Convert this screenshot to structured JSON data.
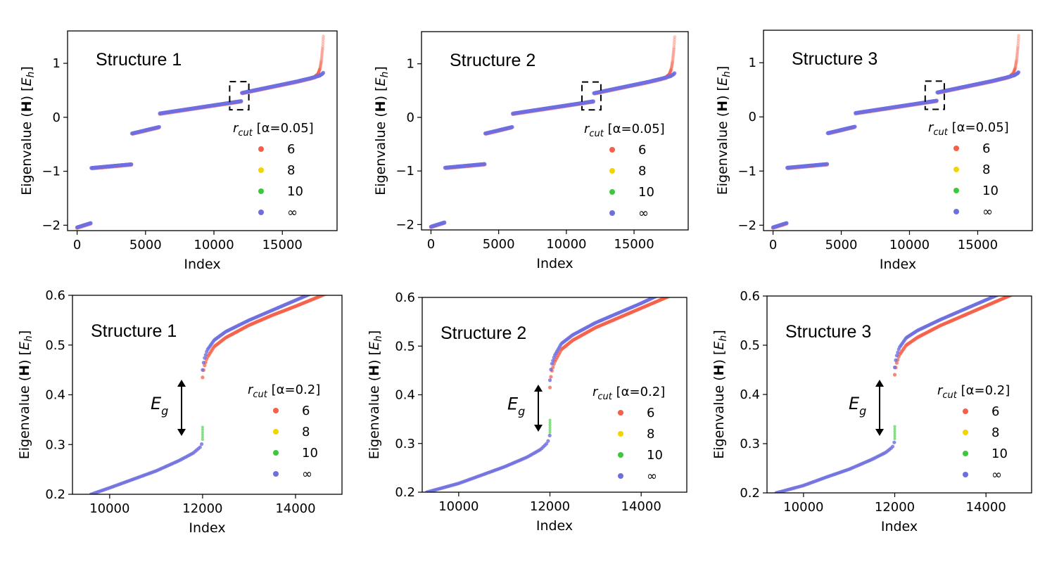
{
  "legend_labels": [
    "6",
    "8",
    "10",
    "∞"
  ],
  "chart_data": [
    {
      "type": "scatter",
      "title": "Structure 1",
      "xlabel": "Index",
      "ylabel": "Eigenvalue (H) [E_h]",
      "xlim": [
        -700,
        19000
      ],
      "ylim": [
        -2.1,
        1.6
      ],
      "xticks": [
        0,
        5000,
        10000,
        15000
      ],
      "yticks": [
        -2,
        -1,
        0,
        1
      ],
      "legend_title": "r_cut [α=0.05]",
      "legend_position": "right",
      "box": true,
      "series": [
        {
          "name": "6",
          "color": "#f4604a"
        },
        {
          "name": "8",
          "color": "#f2d400"
        },
        {
          "name": "10",
          "color": "#3cc83c"
        },
        {
          "name": "∞",
          "color": "#6e6ee0"
        }
      ],
      "x": [
        0,
        1000,
        1010,
        4000,
        4010,
        6000,
        6010,
        12000,
        12010,
        16000,
        17000,
        17700,
        17950,
        18000
      ],
      "ref_y": [
        -2.04,
        -1.96,
        -0.94,
        -0.87,
        -0.3,
        -0.18,
        0.07,
        0.3,
        0.45,
        0.66,
        0.72,
        0.77,
        0.81,
        0.83
      ],
      "r6_tail": [
        [
          17400,
          0.76
        ],
        [
          17600,
          0.8
        ],
        [
          17750,
          0.9
        ],
        [
          17850,
          1.05
        ],
        [
          17950,
          1.3
        ],
        [
          18000,
          1.5
        ]
      ]
    },
    {
      "type": "scatter",
      "title": "Structure 2",
      "xlabel": "Index",
      "ylabel": "Eigenvalue (H) [E_h]",
      "xlim": [
        -700,
        19000
      ],
      "ylim": [
        -2.1,
        1.6
      ],
      "xticks": [
        0,
        5000,
        10000,
        15000
      ],
      "yticks": [
        -2,
        -1,
        0,
        1
      ],
      "legend_title": "r_cut [α=0.05]",
      "legend_position": "right",
      "box": true,
      "series": [
        {
          "name": "6",
          "color": "#f4604a"
        },
        {
          "name": "8",
          "color": "#f2d400"
        },
        {
          "name": "10",
          "color": "#3cc83c"
        },
        {
          "name": "∞",
          "color": "#6e6ee0"
        }
      ],
      "x": [
        0,
        1000,
        1010,
        4000,
        4010,
        6000,
        6010,
        12000,
        12010,
        16000,
        17000,
        17700,
        17950,
        18000
      ],
      "ref_y": [
        -2.04,
        -1.96,
        -0.94,
        -0.87,
        -0.3,
        -0.18,
        0.07,
        0.3,
        0.45,
        0.66,
        0.72,
        0.77,
        0.81,
        0.83
      ],
      "r6_tail": [
        [
          17400,
          0.76
        ],
        [
          17600,
          0.8
        ],
        [
          17750,
          0.9
        ],
        [
          17850,
          1.05
        ],
        [
          17950,
          1.3
        ],
        [
          18000,
          1.5
        ]
      ]
    },
    {
      "type": "scatter",
      "title": "Structure 3",
      "xlabel": "Index",
      "ylabel": "Eigenvalue (H) [E_h]",
      "xlim": [
        -700,
        19000
      ],
      "ylim": [
        -2.1,
        1.6
      ],
      "xticks": [
        0,
        5000,
        10000,
        15000
      ],
      "yticks": [
        -2,
        -1,
        0,
        1
      ],
      "legend_title": "r_cut [α=0.05]",
      "legend_position": "right",
      "box": true,
      "series": [
        {
          "name": "6",
          "color": "#f4604a"
        },
        {
          "name": "8",
          "color": "#f2d400"
        },
        {
          "name": "10",
          "color": "#3cc83c"
        },
        {
          "name": "∞",
          "color": "#6e6ee0"
        }
      ],
      "x": [
        0,
        1000,
        1010,
        4000,
        4010,
        6000,
        6010,
        12000,
        12010,
        16000,
        17000,
        17700,
        17950,
        18000
      ],
      "ref_y": [
        -2.04,
        -1.96,
        -0.94,
        -0.87,
        -0.3,
        -0.18,
        0.07,
        0.3,
        0.45,
        0.66,
        0.72,
        0.77,
        0.81,
        0.83
      ],
      "r6_tail": [
        [
          17400,
          0.76
        ],
        [
          17600,
          0.8
        ],
        [
          17750,
          0.9
        ],
        [
          17850,
          1.05
        ],
        [
          17950,
          1.3
        ],
        [
          18000,
          1.5
        ]
      ]
    },
    {
      "type": "scatter",
      "title": "Structure 1",
      "xlabel": "Index",
      "ylabel": "Eigenvalue (H) [E_h]",
      "xlim": [
        9200,
        15000
      ],
      "ylim": [
        0.2,
        0.6
      ],
      "xticks": [
        10000,
        12000,
        14000
      ],
      "yticks": [
        0.2,
        0.3,
        0.4,
        0.5,
        0.6
      ],
      "legend_title": "r_cut [α=0.2]",
      "legend_position": "right",
      "gap_label": "E_g",
      "series": [
        {
          "name": "6",
          "color": "#f4604a"
        },
        {
          "name": "8",
          "color": "#f2d400"
        },
        {
          "name": "10",
          "color": "#3cc83c"
        },
        {
          "name": "∞",
          "color": "#6e6ee0"
        }
      ],
      "lower_x": [
        9600,
        10000,
        10500,
        11000,
        11500,
        11800,
        11950,
        12000
      ],
      "lower_y": [
        0.2,
        0.213,
        0.23,
        0.247,
        0.268,
        0.283,
        0.295,
        0.305
      ],
      "upper_x": [
        12000,
        12030,
        12100,
        12250,
        12500,
        13000,
        13500,
        14000,
        14500,
        15000
      ],
      "upper_inf_y": [
        0.45,
        0.47,
        0.49,
        0.51,
        0.527,
        0.55,
        0.57,
        0.59,
        0.61,
        0.63
      ],
      "upper_r6_y": [
        0.435,
        0.455,
        0.475,
        0.497,
        0.515,
        0.54,
        0.56,
        0.578,
        0.597,
        0.617
      ]
    },
    {
      "type": "scatter",
      "title": "Structure 2",
      "xlabel": "Index",
      "ylabel": "Eigenvalue (H) [E_h]",
      "xlim": [
        9200,
        15000
      ],
      "ylim": [
        0.2,
        0.6
      ],
      "xticks": [
        10000,
        12000,
        14000
      ],
      "yticks": [
        0.2,
        0.3,
        0.4,
        0.5,
        0.6
      ],
      "legend_title": "r_cut [α=0.2]",
      "legend_position": "right",
      "gap_label": "E_g",
      "series": [
        {
          "name": "6",
          "color": "#f4604a"
        },
        {
          "name": "8",
          "color": "#f2d400"
        },
        {
          "name": "10",
          "color": "#3cc83c"
        },
        {
          "name": "∞",
          "color": "#6e6ee0"
        }
      ],
      "lower_x": [
        9300,
        10000,
        10500,
        11000,
        11500,
        11800,
        11950,
        12000
      ],
      "lower_y": [
        0.2,
        0.218,
        0.235,
        0.252,
        0.272,
        0.288,
        0.302,
        0.318
      ],
      "upper_x": [
        12000,
        12030,
        12100,
        12250,
        12500,
        13000,
        13500,
        14000,
        14500,
        15000
      ],
      "upper_inf_y": [
        0.43,
        0.46,
        0.48,
        0.505,
        0.523,
        0.548,
        0.568,
        0.588,
        0.61,
        0.63
      ],
      "upper_r6_y": [
        0.415,
        0.445,
        0.467,
        0.493,
        0.512,
        0.538,
        0.558,
        0.578,
        0.598,
        0.618
      ]
    },
    {
      "type": "scatter",
      "title": "Structure 3",
      "xlabel": "Index",
      "ylabel": "Eigenvalue (H) [E_h]",
      "xlim": [
        9200,
        15000
      ],
      "ylim": [
        0.2,
        0.6
      ],
      "xticks": [
        10000,
        12000,
        14000
      ],
      "yticks": [
        0.2,
        0.3,
        0.4,
        0.5,
        0.6
      ],
      "legend_title": "r_cut [α=0.2]",
      "legend_position": "right",
      "gap_label": "E_g",
      "series": [
        {
          "name": "6",
          "color": "#f4604a"
        },
        {
          "name": "8",
          "color": "#f2d400"
        },
        {
          "name": "10",
          "color": "#3cc83c"
        },
        {
          "name": "∞",
          "color": "#6e6ee0"
        }
      ],
      "lower_x": [
        9400,
        10000,
        10500,
        11000,
        11500,
        11800,
        11950,
        12000
      ],
      "lower_y": [
        0.2,
        0.215,
        0.232,
        0.248,
        0.268,
        0.282,
        0.293,
        0.305
      ],
      "upper_x": [
        12000,
        12030,
        12100,
        12250,
        12500,
        13000,
        13500,
        14000,
        14500,
        15000
      ],
      "upper_inf_y": [
        0.455,
        0.475,
        0.495,
        0.515,
        0.53,
        0.552,
        0.572,
        0.592,
        0.612,
        0.632
      ],
      "upper_r6_y": [
        0.44,
        0.46,
        0.48,
        0.5,
        0.516,
        0.54,
        0.56,
        0.58,
        0.6,
        0.62
      ]
    }
  ]
}
